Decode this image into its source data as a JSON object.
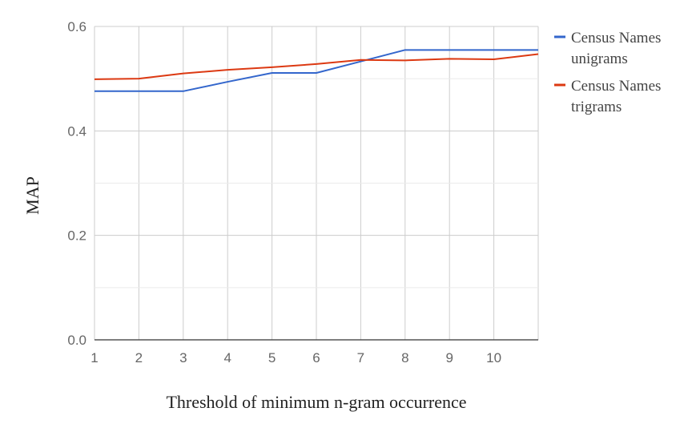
{
  "chart_data": {
    "type": "line",
    "title": "",
    "xlabel": "Threshold of minimum n-gram occurrence",
    "ylabel": "MAP",
    "x": [
      1,
      2,
      3,
      4,
      5,
      6,
      7,
      8,
      9,
      10,
      11
    ],
    "x_tick_labels": [
      "1",
      "2",
      "3",
      "4",
      "5",
      "6",
      "7",
      "8",
      "9",
      "10"
    ],
    "xlim": [
      1,
      11
    ],
    "ylim": [
      0,
      0.6
    ],
    "y_ticks": [
      0.0,
      0.2,
      0.4,
      0.6
    ],
    "y_tick_labels": [
      "0.0",
      "0.2",
      "0.4",
      "0.6"
    ],
    "grid": true,
    "legend_position": "right",
    "series": [
      {
        "name": [
          "Census Names",
          "unigrams"
        ],
        "color": "#3366cc",
        "values": [
          0.476,
          0.476,
          0.476,
          0.494,
          0.511,
          0.511,
          0.533,
          0.555,
          0.555,
          0.555,
          0.555
        ]
      },
      {
        "name": [
          "Census Names",
          "trigrams"
        ],
        "color": "#dc3912",
        "values": [
          0.499,
          0.5,
          0.51,
          0.517,
          0.522,
          0.528,
          0.536,
          0.535,
          0.538,
          0.537,
          0.547
        ]
      }
    ]
  }
}
